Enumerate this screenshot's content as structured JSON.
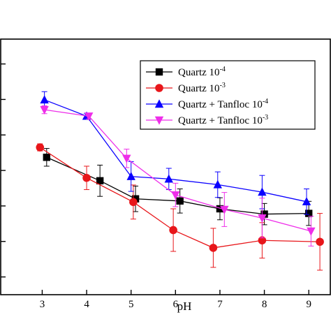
{
  "chart_data": {
    "type": "line",
    "xlabel": "pH",
    "ylabel": "",
    "title": "",
    "xlim": [
      2.05,
      9.5
    ],
    "ylim": [
      -15,
      57
    ],
    "x_ticks": [
      3,
      4,
      5,
      6,
      7,
      8,
      9
    ],
    "y_tick_values": [
      -10,
      0,
      10,
      20,
      30,
      40,
      50
    ],
    "grid": false,
    "legend_position": "top-right",
    "series": [
      {
        "name_main": "Quartz 10",
        "name_exp": "-4",
        "color": "#000000",
        "marker": "square",
        "x": [
          3.1,
          4.3,
          5.1,
          6.1,
          7.0,
          8.0,
          9.0
        ],
        "y": [
          23.7,
          17.1,
          12.0,
          11.4,
          9.2,
          7.7,
          7.9
        ],
        "err": [
          2.5,
          4.4,
          3.6,
          3.4,
          3.1,
          3.0,
          3.4
        ]
      },
      {
        "name_main": "Quartz 10",
        "name_exp": "-3",
        "color": "#e8161a",
        "marker": "circle",
        "x": [
          2.95,
          4.0,
          5.05,
          5.95,
          6.85,
          7.95,
          9.25
        ],
        "y": [
          26.5,
          17.9,
          11.1,
          3.2,
          -1.8,
          0.3,
          -0.1
        ],
        "err": [
          1.0,
          3.3,
          4.8,
          6.0,
          5.5,
          5.0,
          8.0
        ]
      },
      {
        "name_main": "Quartz + Tanfloc 10",
        "name_exp": "-4",
        "color": "#0a00ff",
        "marker": "triangle-up",
        "x": [
          3.05,
          4.0,
          5.0,
          5.85,
          6.95,
          7.95,
          8.95
        ],
        "y": [
          39.9,
          35.3,
          18.3,
          17.6,
          16.0,
          13.9,
          11.2
        ],
        "err": [
          2.3,
          0.8,
          4.2,
          3.0,
          3.6,
          4.7,
          3.6
        ]
      },
      {
        "name_main": "Quartz + Tanfloc 10",
        "name_exp": "-3",
        "color": "#ee2ee9",
        "marker": "triangle-down",
        "x": [
          3.05,
          4.05,
          4.9,
          6.0,
          7.1,
          7.95,
          9.05
        ],
        "y": [
          37.1,
          35.3,
          23.4,
          13.1,
          9.0,
          6.6,
          2.9
        ],
        "err": [
          1.1,
          0.8,
          2.6,
          3.3,
          4.8,
          5.6,
          4.2
        ]
      }
    ]
  }
}
